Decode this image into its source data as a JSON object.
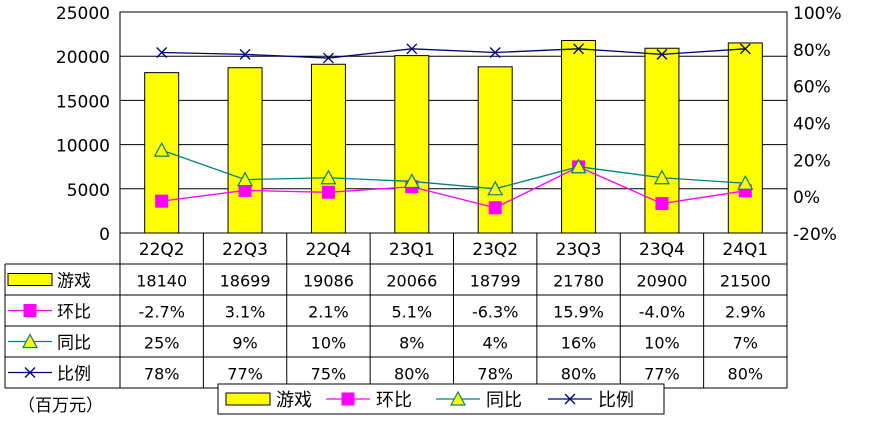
{
  "chart_data": {
    "type": "bar",
    "categories": [
      "22Q2",
      "22Q3",
      "22Q4",
      "23Q1",
      "23Q2",
      "23Q3",
      "23Q4",
      "24Q1"
    ],
    "yleft": {
      "ticks": [
        "0",
        "5000",
        "10000",
        "15000",
        "20000",
        "25000"
      ],
      "ylim": [
        0,
        25000
      ]
    },
    "yright": {
      "ticks": [
        "-20%",
        "0%",
        "20%",
        "40%",
        "60%",
        "80%",
        "100%"
      ],
      "ylim": [
        -20,
        100
      ]
    },
    "series": [
      {
        "name": "游戏",
        "type": "bar",
        "axis": "left",
        "color": "#ffff00",
        "values": [
          18140,
          18699,
          19086,
          20066,
          18799,
          21780,
          20900,
          21500
        ],
        "labels": [
          "18140",
          "18699",
          "19086",
          "20066",
          "18799",
          "21780",
          "20900",
          "21500"
        ]
      },
      {
        "name": "环比",
        "type": "line",
        "axis": "right",
        "marker": "square",
        "color": "#ff00ff",
        "values": [
          -2.7,
          3.1,
          2.1,
          5.1,
          -6.3,
          15.9,
          -4.0,
          2.9
        ],
        "labels": [
          "-2.7%",
          "3.1%",
          "2.1%",
          "5.1%",
          "-6.3%",
          "15.9%",
          "-4.0%",
          "2.9%"
        ]
      },
      {
        "name": "同比",
        "type": "line",
        "axis": "right",
        "marker": "triangle",
        "color": "#008080",
        "values": [
          25,
          9,
          10,
          8,
          4,
          16,
          10,
          7
        ],
        "labels": [
          "25%",
          "9%",
          "10%",
          "8%",
          "4%",
          "16%",
          "10%",
          "7%"
        ]
      },
      {
        "name": "比例",
        "type": "line",
        "axis": "right",
        "marker": "x",
        "color": "#000080",
        "values": [
          78,
          77,
          75,
          80,
          78,
          80,
          77,
          80
        ],
        "labels": [
          "78%",
          "77%",
          "75%",
          "80%",
          "78%",
          "80%",
          "77%",
          "80%"
        ]
      }
    ],
    "grid": true,
    "legend": "bottom",
    "unit_note": "（百万元）"
  }
}
